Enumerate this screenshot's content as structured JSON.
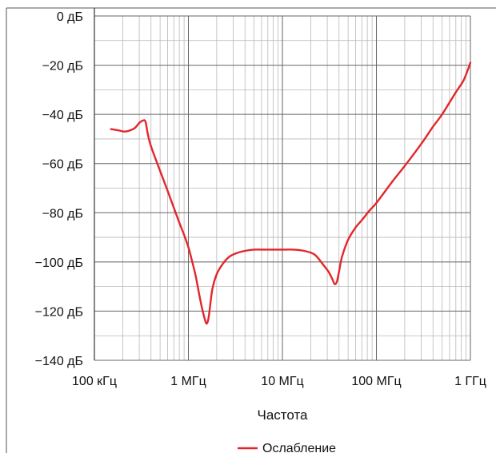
{
  "chart_data": {
    "type": "line",
    "title": "",
    "xlabel": "Частота",
    "ylabel": "",
    "x_scale": "log",
    "xlim": [
      100000,
      1000000000
    ],
    "ylim": [
      -140,
      0
    ],
    "x_ticks": [
      {
        "value": 100000,
        "label": "100 кГц"
      },
      {
        "value": 1000000,
        "label": "1 МГц"
      },
      {
        "value": 10000000,
        "label": "10 МГц"
      },
      {
        "value": 100000000,
        "label": "100 МГц"
      },
      {
        "value": 1000000000,
        "label": "1 ГГц"
      }
    ],
    "y_ticks": [
      {
        "value": 0,
        "label": "0 дБ"
      },
      {
        "value": -20,
        "label": "−20 дБ"
      },
      {
        "value": -40,
        "label": "−40 дБ"
      },
      {
        "value": -60,
        "label": "−60 дБ"
      },
      {
        "value": -80,
        "label": "−80 дБ"
      },
      {
        "value": -100,
        "label": "−100 дБ"
      },
      {
        "value": -120,
        "label": "−120 дБ"
      },
      {
        "value": -140,
        "label": "−140 дБ"
      }
    ],
    "grid": true,
    "legend": {
      "placement": "bottom"
    },
    "series": [
      {
        "name": "Ослабление",
        "color": "#e3262b",
        "x": [
          150000,
          180000,
          210000,
          240000,
          270000,
          300000,
          330000,
          350000,
          370000,
          400000,
          500000,
          600000,
          700000,
          800000,
          900000,
          1000000,
          1100000,
          1200000,
          1300000,
          1400000,
          1500000,
          1550000,
          1600000,
          1650000,
          1700000,
          1800000,
          2000000,
          2300000,
          2700000,
          3200000,
          4000000,
          5000000,
          6500000,
          8000000,
          10000000,
          13000000,
          17000000,
          22000000,
          27000000,
          31000000,
          34000000,
          36000000,
          38000000,
          40000000,
          43000000,
          50000000,
          60000000,
          70000000,
          85000000,
          100000000,
          150000000,
          200000000,
          300000000,
          400000000,
          500000000,
          700000000,
          850000000,
          1000000000
        ],
        "y": [
          -46,
          -46.5,
          -47,
          -46.5,
          -45.5,
          -43.5,
          -42.5,
          -43,
          -48,
          -53,
          -63,
          -71,
          -78,
          -84,
          -89,
          -94,
          -100,
          -106,
          -113,
          -119,
          -123.5,
          -125,
          -124.5,
          -122,
          -118,
          -111,
          -105,
          -101,
          -98,
          -96.5,
          -95.5,
          -95,
          -95,
          -95,
          -95,
          -95,
          -95.5,
          -97,
          -101,
          -104,
          -107,
          -109,
          -108,
          -104,
          -98,
          -91,
          -86,
          -83,
          -79,
          -76,
          -67,
          -61,
          -52,
          -45,
          -40,
          -31,
          -26,
          -19
        ]
      }
    ]
  }
}
